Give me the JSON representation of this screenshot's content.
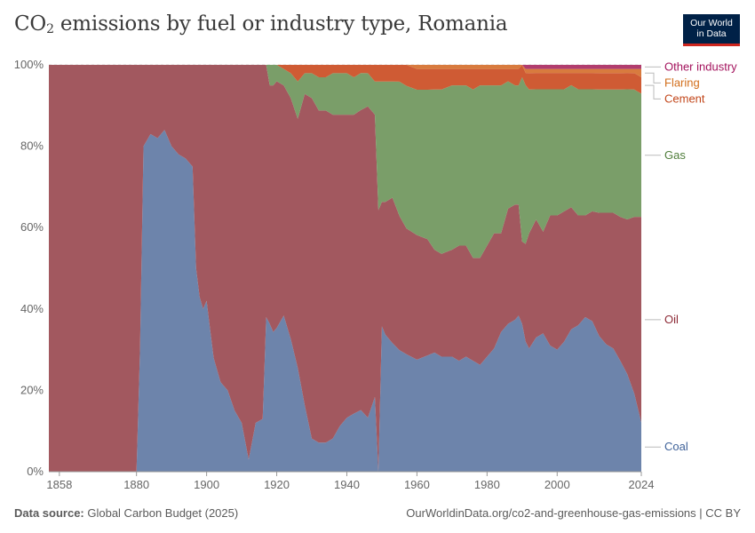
{
  "header": {
    "title_pre": "CO",
    "title_sub": "2",
    "title_post": " emissions by fuel or industry type, Romania",
    "logo_line1": "Our World",
    "logo_line2": "in Data"
  },
  "footer": {
    "source_label": "Data source:",
    "source_value": " Global Carbon Budget (2025)",
    "url": "OurWorldinData.org/co2-and-greenhouse-gas-emissions | CC BY"
  },
  "chart_data": {
    "type": "area",
    "stacked": "percent",
    "title": "CO₂ emissions by fuel or industry type, Romania",
    "xlim": [
      1855,
      2024
    ],
    "ylim": [
      0,
      100
    ],
    "x_ticks": [
      "1858",
      "1880",
      "1900",
      "1920",
      "1940",
      "1960",
      "1980",
      "2000",
      "2024"
    ],
    "y_ticks": [
      "0%",
      "20%",
      "40%",
      "60%",
      "80%",
      "100%"
    ],
    "x": [
      1855,
      1880,
      1881,
      1882,
      1884,
      1886,
      1888,
      1890,
      1892,
      1894,
      1896,
      1897,
      1898,
      1899,
      1900,
      1901,
      1902,
      1904,
      1906,
      1908,
      1910,
      1912,
      1914,
      1916,
      1917,
      1918,
      1919,
      1920,
      1922,
      1924,
      1926,
      1928,
      1930,
      1932,
      1934,
      1936,
      1938,
      1940,
      1942,
      1944,
      1946,
      1948,
      1949,
      1950,
      1951,
      1953,
      1955,
      1957,
      1960,
      1963,
      1965,
      1967,
      1970,
      1972,
      1974,
      1976,
      1978,
      1980,
      1982,
      1984,
      1986,
      1988,
      1989,
      1990,
      1991,
      1992,
      1994,
      1996,
      1998,
      2000,
      2002,
      2004,
      2006,
      2008,
      2010,
      2012,
      2014,
      2016,
      2018,
      2020,
      2022,
      2024
    ],
    "series": [
      {
        "name": "Coal",
        "color": "#6d84ab",
        "values": [
          0,
          0,
          30,
          80,
          83,
          82,
          84,
          80,
          78,
          77,
          75,
          50,
          43,
          40,
          42,
          35,
          28,
          22,
          20,
          15,
          12,
          3,
          12,
          13,
          38,
          36,
          34,
          35,
          38,
          32,
          25,
          16,
          8,
          7,
          7,
          8,
          11,
          13,
          14,
          15,
          13,
          18,
          0,
          35,
          33,
          31,
          29,
          28,
          27,
          28,
          29,
          28,
          28,
          27,
          28,
          27,
          26,
          28,
          30,
          34,
          36,
          37,
          38,
          36,
          32,
          30,
          33,
          34,
          31,
          30,
          32,
          35,
          36,
          38,
          37,
          33,
          31,
          30,
          27,
          24,
          19,
          12
        ]
      },
      {
        "name": "Oil",
        "color": "#a2585f",
        "values": [
          100,
          100,
          70,
          20,
          17,
          18,
          16,
          20,
          22,
          23,
          25,
          50,
          57,
          60,
          58,
          65,
          72,
          78,
          80,
          85,
          88,
          97,
          88,
          87,
          62,
          58,
          60,
          60,
          56,
          58,
          60,
          75,
          82,
          80,
          80,
          78,
          75,
          73,
          72,
          73,
          75,
          68,
          63,
          30,
          32,
          35,
          32,
          30,
          30,
          28,
          25,
          25,
          26,
          28,
          27,
          25,
          26,
          27,
          28,
          24,
          28,
          28,
          27,
          20,
          24,
          28,
          29,
          25,
          32,
          33,
          32,
          30,
          27,
          25,
          27,
          30,
          32,
          33,
          35,
          38,
          43,
          50
        ]
      },
      {
        "name": "Gas",
        "color": "#7a9e69",
        "values": [
          0,
          0,
          0,
          0,
          0,
          0,
          0,
          0,
          0,
          0,
          0,
          0,
          0,
          0,
          0,
          0,
          0,
          0,
          0,
          0,
          0,
          0,
          0,
          0,
          0,
          5,
          5,
          4,
          4,
          6,
          9,
          5,
          6,
          8,
          8,
          10,
          10,
          10,
          9,
          9,
          8,
          8,
          31,
          29,
          29,
          28,
          32,
          34,
          35,
          36,
          39,
          40,
          40,
          39,
          39,
          41,
          42,
          39,
          36,
          36,
          31,
          29,
          29,
          40,
          39,
          35,
          32,
          35,
          31,
          31,
          30,
          30,
          31,
          31,
          30,
          30,
          30,
          30,
          31,
          32,
          31,
          30
        ]
      },
      {
        "name": "Cement",
        "color": "#cf5b34",
        "values": [
          0,
          0,
          0,
          0,
          0,
          0,
          0,
          0,
          0,
          0,
          0,
          0,
          0,
          0,
          0,
          0,
          0,
          0,
          0,
          0,
          0,
          0,
          0,
          0,
          0,
          0,
          0,
          0,
          1,
          2,
          4,
          2,
          2,
          3,
          3,
          2,
          2,
          2,
          3,
          2,
          2,
          4,
          4,
          4,
          4,
          4,
          4,
          5,
          5,
          5,
          5,
          5,
          4,
          4,
          4,
          5,
          4,
          4,
          4,
          4,
          3,
          4,
          4,
          3,
          3,
          4,
          4,
          4,
          4,
          4,
          4,
          3,
          4,
          4,
          4,
          4,
          4,
          4,
          4,
          4,
          4,
          4
        ]
      },
      {
        "name": "Flaring",
        "color": "#d87b3e",
        "values": [
          0,
          0,
          0,
          0,
          0,
          0,
          0,
          0,
          0,
          0,
          0,
          0,
          0,
          0,
          0,
          0,
          0,
          0,
          0,
          0,
          0,
          0,
          0,
          0,
          0,
          0,
          0,
          0,
          0,
          0,
          0,
          0,
          0,
          0,
          0,
          0,
          0,
          0,
          0,
          0,
          0,
          0,
          0,
          0,
          0,
          0,
          0,
          0,
          1,
          1,
          1,
          1,
          1,
          1,
          1,
          1,
          1,
          1,
          1,
          1,
          1,
          1,
          1,
          0,
          1,
          1,
          1,
          1,
          1,
          1,
          1,
          1,
          1,
          1,
          1,
          1,
          1,
          1,
          1,
          1,
          1,
          2
        ]
      },
      {
        "name": "Other industry",
        "color": "#b13d6e",
        "values": [
          0,
          0,
          0,
          0,
          0,
          0,
          0,
          0,
          0,
          0,
          0,
          0,
          0,
          0,
          0,
          0,
          0,
          0,
          0,
          0,
          0,
          0,
          0,
          0,
          0,
          0,
          0,
          0,
          0,
          0,
          0,
          0,
          0,
          0,
          0,
          0,
          0,
          0,
          0,
          0,
          0,
          0,
          0,
          0,
          0,
          0,
          0,
          0,
          0,
          0,
          0,
          0,
          0,
          0,
          0,
          0,
          0,
          0,
          0,
          0,
          0,
          0,
          0,
          0,
          1,
          1,
          1,
          1,
          1,
          1,
          1,
          1,
          1,
          1,
          1,
          1,
          1,
          1,
          1,
          1,
          1,
          1
        ]
      }
    ],
    "legend_position": "right",
    "legend_label_colors": {
      "Other industry": "#a4145e",
      "Flaring": "#d26e1b",
      "Cement": "#c2461a",
      "Gas": "#4f7d3a",
      "Oil": "#8d2a36",
      "Coal": "#40639a"
    }
  }
}
